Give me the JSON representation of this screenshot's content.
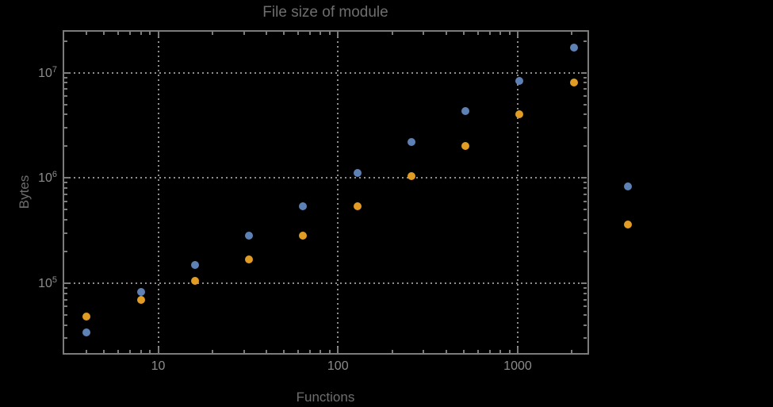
{
  "colors": {
    "background": "#000000",
    "frame": "#7b7b7b",
    "grid": "#8d8d8d",
    "tick_label_text": "#8c8c8c",
    "label_text": "#6e6e6e",
    "series_blue": "#5E81B5",
    "series_orange": "#E19C24"
  },
  "chart_data": {
    "type": "scatter",
    "title": "File size of module",
    "xlabel": "Functions",
    "ylabel": "Bytes",
    "x_scale": "log",
    "y_scale": "log",
    "xlim": [
      3,
      2420
    ],
    "ylim": [
      21700,
      24700000
    ],
    "grid": "dotted gridlines at major ticks only",
    "legend": "none",
    "frame": "full frame with inward ticks on all four sides",
    "x": [
      4,
      8,
      16,
      32,
      64,
      128,
      256,
      512,
      1024,
      2048,
      4096
    ],
    "series": [
      {
        "name": "blue",
        "color": "#5E81B5",
        "values": [
          34000,
          83000,
          150000,
          285000,
          540000,
          1120000,
          2200000,
          4300000,
          8400000,
          17300000,
          830000
        ]
      },
      {
        "name": "orange",
        "color": "#E19C24",
        "values": [
          48000,
          70000,
          105000,
          168000,
          285000,
          535000,
          1040000,
          2000000,
          4050000,
          8000000,
          360000
        ]
      }
    ],
    "x_ticks": [
      {
        "value": 10,
        "label": "10"
      },
      {
        "value": 100,
        "label": "100"
      },
      {
        "value": 1000,
        "label": "1000"
      }
    ],
    "y_ticks": [
      {
        "value": 100000,
        "base": "10",
        "exp": "5"
      },
      {
        "value": 1000000,
        "base": "10",
        "exp": "6"
      },
      {
        "value": 10000000,
        "base": "10",
        "exp": "7"
      }
    ],
    "note": "x=4096 points are drawn outside the right edge of the plot frame"
  }
}
